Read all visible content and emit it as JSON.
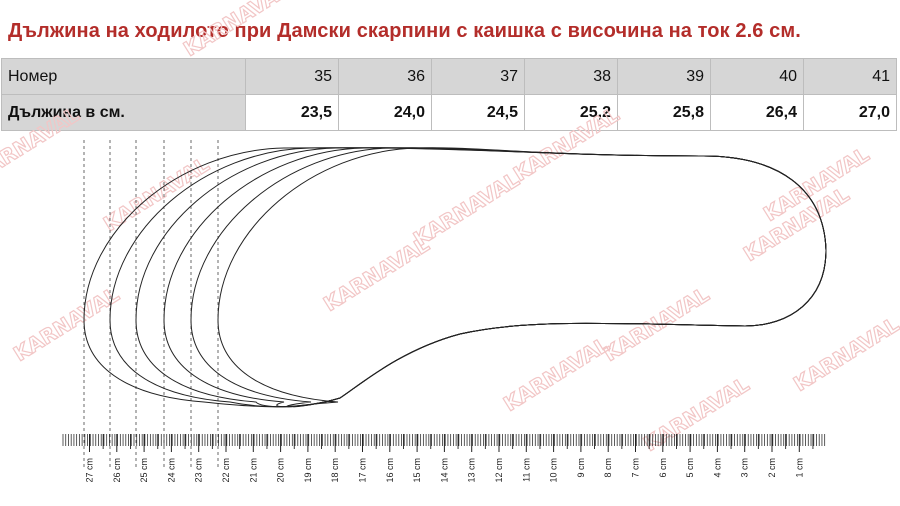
{
  "title": "Дължина на ходилото при Дамски скарпини с каишка с височина на ток 2.6 см.",
  "table": {
    "header_label": "Номер",
    "length_label": "Дължина в см.",
    "sizes": [
      "35",
      "36",
      "37",
      "38",
      "39",
      "40",
      "41"
    ],
    "lengths": [
      "23,5",
      "24,0",
      "24,5",
      "25,2",
      "25,8",
      "26,4",
      "27,0"
    ]
  },
  "ruler": {
    "labels": [
      "27 cm",
      "26 cm",
      "25 cm",
      "24 cm",
      "23 cm",
      "22 cm",
      "21 cm",
      "20 cm",
      "19 cm",
      "18 cm",
      "17 cm",
      "16 cm",
      "15 cm",
      "14 cm",
      "13 cm",
      "12 cm",
      "11 cm",
      "10 cm",
      "9 cm",
      "8 cm",
      "7 cm",
      "6 cm",
      "5 cm",
      "4 cm",
      "3 cm",
      "2 cm",
      "1 cm"
    ]
  },
  "watermark": "KARNAVAL",
  "colors": {
    "title": "#b32d2a",
    "header_bg": "#d6d6d6",
    "watermark": "#f2c6c6"
  }
}
